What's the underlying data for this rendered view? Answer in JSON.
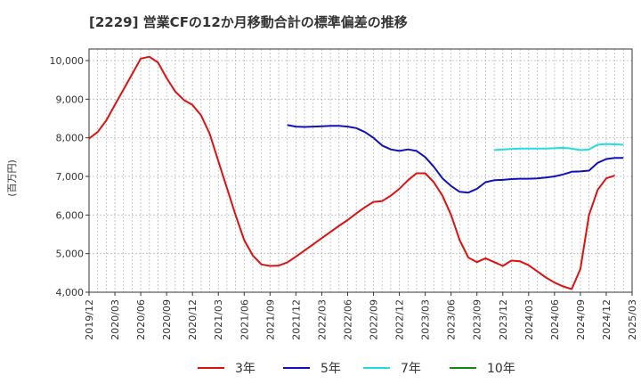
{
  "chart_data": {
    "type": "line",
    "title": "[2229]  営業CFの12か月移動合計の標準偏差の推移",
    "ylabel": "(百万円)",
    "xlabel": "",
    "ylim": [
      4000,
      10300
    ],
    "yticks": [
      4000,
      5000,
      6000,
      7000,
      8000,
      9000,
      10000
    ],
    "ytick_labels": [
      "4,000",
      "5,000",
      "6,000",
      "7,000",
      "8,000",
      "9,000",
      "10,000"
    ],
    "xlim": [
      "2019-12",
      "2025-03"
    ],
    "xtick_labels": [
      "2019/12",
      "2020/03",
      "2020/06",
      "2020/09",
      "2020/12",
      "2021/03",
      "2021/06",
      "2021/09",
      "2021/12",
      "2022/03",
      "2022/06",
      "2022/09",
      "2022/12",
      "2023/03",
      "2023/06",
      "2023/09",
      "2023/12",
      "2024/03",
      "2024/06",
      "2024/09",
      "2024/12",
      "2025/03"
    ],
    "grid": true,
    "legend_position": "bottom",
    "series": [
      {
        "name": "3年",
        "color": "#dd1111",
        "start": "2019-12",
        "values": [
          7980,
          8150,
          8450,
          8850,
          9250,
          9650,
          10050,
          10100,
          9950,
          9550,
          9200,
          8980,
          8850,
          8580,
          8100,
          7400,
          6700,
          6000,
          5350,
          4950,
          4720,
          4680,
          4690,
          4770,
          4920,
          5080,
          5240,
          5400,
          5560,
          5720,
          5870,
          6040,
          6200,
          6340,
          6360,
          6500,
          6680,
          6900,
          7080,
          7080,
          6850,
          6500,
          6000,
          5350,
          4900,
          4780,
          4880,
          4780,
          4680,
          4820,
          4800,
          4700,
          4540,
          4380,
          4250,
          4150,
          4080,
          4600,
          6000,
          6650,
          6950,
          7020
        ]
      },
      {
        "name": "5年",
        "color": "#1111bb",
        "start": "2021-11",
        "values": [
          8330,
          8290,
          8280,
          8290,
          8300,
          8310,
          8310,
          8290,
          8250,
          8150,
          8000,
          7800,
          7700,
          7660,
          7700,
          7660,
          7500,
          7250,
          6950,
          6750,
          6600,
          6580,
          6680,
          6850,
          6900,
          6910,
          6930,
          6940,
          6940,
          6950,
          6970,
          7000,
          7050,
          7120,
          7130,
          7150,
          7350,
          7450,
          7480,
          7480
        ]
      },
      {
        "name": "7年",
        "color": "#22dddd",
        "start": "2023-11",
        "values": [
          7680,
          7700,
          7710,
          7720,
          7720,
          7720,
          7720,
          7730,
          7740,
          7720,
          7680,
          7700,
          7820,
          7840,
          7830,
          7820
        ]
      },
      {
        "name": "10年",
        "color": "#118811",
        "start": "2024-12",
        "values": []
      }
    ]
  }
}
